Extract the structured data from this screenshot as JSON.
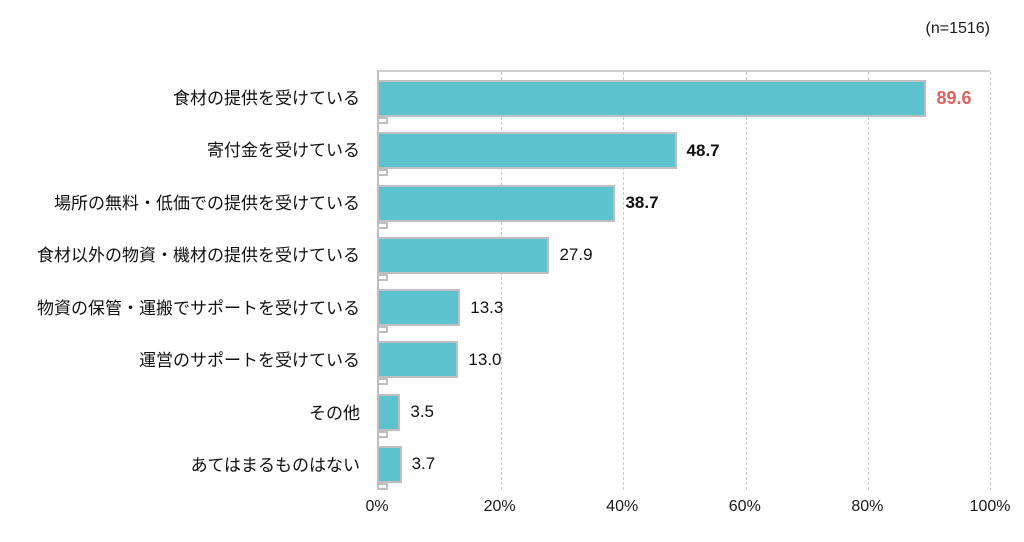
{
  "chart": {
    "sample_size_label": "(n=1516)",
    "colors": {
      "bar_fill": "#5cc3ce",
      "bar_border": "#bfbfbf",
      "highlight_value": "#e0615e",
      "gridline": "#c9c9c9"
    }
  },
  "chart_data": {
    "type": "bar",
    "orientation": "horizontal",
    "title": "",
    "xlabel": "",
    "ylabel": "",
    "annotation": "(n=1516)",
    "categories": [
      "食材の提供を受けている",
      "寄付金を受けている",
      "場所の無料・低価での提供を受けている",
      "食材以外の物資・機材の提供を受けている",
      "物資の保管・運搬でサポートを受けている",
      "運営のサポートを受けている",
      "その他",
      "あてはまるものはない"
    ],
    "values": [
      89.6,
      48.7,
      38.7,
      27.9,
      13.3,
      13.0,
      3.5,
      3.7
    ],
    "value_labels": [
      "89.6",
      "48.7",
      "38.7",
      "27.9",
      "13.3",
      "13.0",
      "3.5",
      "3.7"
    ],
    "value_styles": [
      "red-bold",
      "bold",
      "bold",
      "normal",
      "normal",
      "normal",
      "normal",
      "normal"
    ],
    "xlim": [
      0,
      100
    ],
    "x_ticks": [
      "0%",
      "20%",
      "40%",
      "60%",
      "80%",
      "100%"
    ],
    "x_tick_positions": [
      0,
      20,
      40,
      60,
      80,
      100
    ],
    "grid_positions": [
      20,
      40,
      60,
      80,
      100
    ],
    "grid": "vertical-dashed",
    "legend": "none"
  }
}
